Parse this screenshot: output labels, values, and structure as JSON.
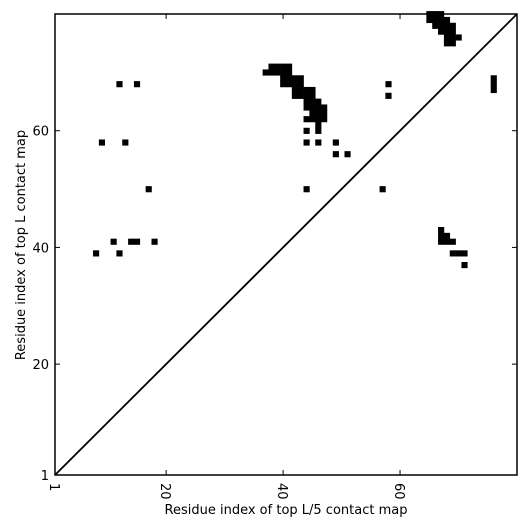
{
  "chart_data": {
    "type": "heatmap",
    "title": "",
    "xlabel": "Residue index of top L/5 contact map",
    "ylabel": "Residue index of top L contact map",
    "xlim": [
      1,
      80
    ],
    "ylim": [
      1,
      80
    ],
    "x_ticks": [
      1,
      20,
      40,
      60
    ],
    "y_ticks": [
      1,
      20,
      40,
      60
    ],
    "grid": false,
    "diagonal": true,
    "cell_color": "#000000",
    "contacts_upper": [
      [
        65,
        80
      ],
      [
        66,
        80
      ],
      [
        67,
        80
      ],
      [
        65,
        79
      ],
      [
        66,
        79
      ],
      [
        67,
        79
      ],
      [
        68,
        79
      ],
      [
        66,
        78
      ],
      [
        67,
        78
      ],
      [
        68,
        78
      ],
      [
        69,
        78
      ],
      [
        67,
        77
      ],
      [
        68,
        77
      ],
      [
        69,
        77
      ],
      [
        68,
        76
      ],
      [
        69,
        76
      ],
      [
        70,
        76
      ],
      [
        68,
        75
      ],
      [
        69,
        75
      ],
      [
        38,
        71
      ],
      [
        39,
        71
      ],
      [
        40,
        71
      ],
      [
        41,
        71
      ],
      [
        37,
        70
      ],
      [
        38,
        70
      ],
      [
        39,
        70
      ],
      [
        40,
        70
      ],
      [
        41,
        70
      ],
      [
        40,
        69
      ],
      [
        41,
        69
      ],
      [
        42,
        69
      ],
      [
        43,
        69
      ],
      [
        40,
        68
      ],
      [
        41,
        68
      ],
      [
        42,
        68
      ],
      [
        43,
        68
      ],
      [
        42,
        67
      ],
      [
        43,
        67
      ],
      [
        44,
        67
      ],
      [
        45,
        67
      ],
      [
        42,
        66
      ],
      [
        43,
        66
      ],
      [
        44,
        66
      ],
      [
        45,
        66
      ],
      [
        44,
        65
      ],
      [
        45,
        65
      ],
      [
        46,
        65
      ],
      [
        44,
        64
      ],
      [
        45,
        64
      ],
      [
        46,
        64
      ],
      [
        47,
        64
      ],
      [
        45,
        63
      ],
      [
        46,
        63
      ],
      [
        47,
        63
      ],
      [
        44,
        62
      ],
      [
        45,
        62
      ],
      [
        46,
        62
      ],
      [
        47,
        62
      ],
      [
        46,
        61
      ],
      [
        44,
        60
      ],
      [
        46,
        60
      ],
      [
        44,
        58
      ],
      [
        46,
        58
      ],
      [
        44,
        50
      ],
      [
        58,
        68
      ],
      [
        58,
        66
      ],
      [
        49,
        58
      ],
      [
        49,
        56
      ],
      [
        51,
        56
      ],
      [
        57,
        50
      ]
    ],
    "contacts_lower": [
      [
        12,
        68
      ],
      [
        15,
        68
      ],
      [
        9,
        58
      ],
      [
        13,
        58
      ],
      [
        17,
        50
      ],
      [
        11,
        41
      ],
      [
        14,
        41
      ],
      [
        15,
        41
      ],
      [
        18,
        41
      ],
      [
        8,
        39
      ],
      [
        12,
        39
      ],
      [
        76,
        69
      ],
      [
        76,
        68
      ],
      [
        76,
        67
      ],
      [
        67,
        43
      ],
      [
        67,
        42
      ],
      [
        68,
        42
      ],
      [
        67,
        41
      ],
      [
        68,
        41
      ],
      [
        69,
        41
      ],
      [
        69,
        39
      ],
      [
        70,
        39
      ],
      [
        71,
        39
      ],
      [
        71,
        37
      ]
    ]
  }
}
